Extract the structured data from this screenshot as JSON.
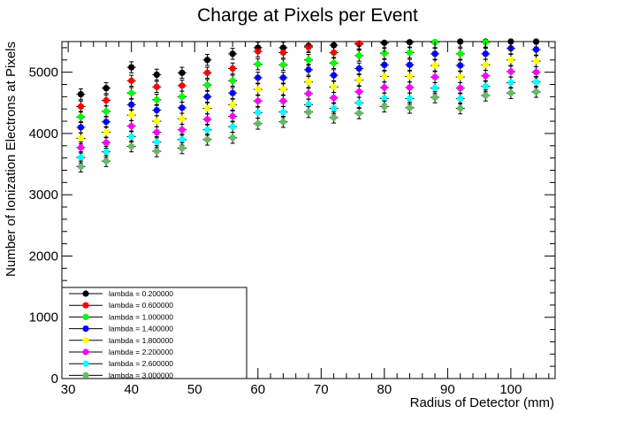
{
  "chart_data": {
    "type": "scatter",
    "title": "Charge at Pixels per Event",
    "xlabel": "Radius of Detector (mm)",
    "ylabel": "Number of Ionization Electrons at Pixels",
    "xlim": [
      29,
      107
    ],
    "ylim": [
      0,
      5500
    ],
    "x_ticks": [
      30,
      40,
      50,
      60,
      70,
      80,
      90,
      100
    ],
    "y_ticks": [
      0,
      1000,
      2000,
      3000,
      4000,
      5000
    ],
    "grid": false,
    "legend_position": "bottom-left",
    "x": [
      32,
      36,
      40,
      44,
      48,
      52,
      56,
      60,
      64,
      68,
      72,
      76,
      80,
      84,
      88,
      92,
      96,
      100,
      104
    ],
    "series": [
      {
        "name": "lambda = 0.200000",
        "color": "#000000",
        "values": [
          4640,
          4740,
          5080,
          4960,
          4990,
          5200,
          5300,
          5400,
          5400,
          5430,
          5440,
          5460,
          5480,
          5490,
          5490,
          5500,
          5500,
          5500,
          5500
        ]
      },
      {
        "name": "lambda = 0.600000",
        "color": "#ff0000",
        "values": [
          4440,
          4540,
          4860,
          4760,
          4780,
          4990,
          5060,
          5340,
          5320,
          5410,
          5320,
          5470,
          5510,
          5510,
          5520,
          5510,
          5520,
          5540,
          5540
        ]
      },
      {
        "name": "lambda = 1.000000",
        "color": "#00ff00",
        "values": [
          4270,
          4360,
          4660,
          4550,
          4600,
          4790,
          4860,
          5130,
          5120,
          5200,
          5150,
          5270,
          5310,
          5320,
          5490,
          5300,
          5490,
          5530,
          5530
        ]
      },
      {
        "name": "lambda = 1.400000",
        "color": "#0000ff",
        "values": [
          4100,
          4190,
          4470,
          4380,
          4420,
          4600,
          4660,
          4910,
          4910,
          5040,
          4950,
          5060,
          5120,
          5120,
          5300,
          5110,
          5300,
          5390,
          5370
        ]
      },
      {
        "name": "lambda = 1.800000",
        "color": "#ffff00",
        "values": [
          3920,
          4020,
          4300,
          4200,
          4240,
          4410,
          4470,
          4720,
          4720,
          4840,
          4760,
          4870,
          4930,
          4930,
          5110,
          4920,
          5120,
          5200,
          5180
        ]
      },
      {
        "name": "lambda = 2.200000",
        "color": "#ff00ff",
        "values": [
          3770,
          3850,
          4120,
          4020,
          4060,
          4230,
          4280,
          4530,
          4530,
          4650,
          4580,
          4680,
          4750,
          4750,
          4920,
          4740,
          4940,
          5010,
          5000
        ]
      },
      {
        "name": "lambda = 2.600000",
        "color": "#00ffff",
        "values": [
          3610,
          3700,
          3950,
          3860,
          3900,
          4060,
          4110,
          4340,
          4350,
          4470,
          4410,
          4500,
          4570,
          4570,
          4740,
          4570,
          4770,
          4830,
          4840
        ]
      },
      {
        "name": "lambda = 3.000000",
        "color": "#66bb66",
        "values": [
          3460,
          3550,
          3790,
          3710,
          3760,
          3900,
          3930,
          4160,
          4190,
          4350,
          4260,
          4330,
          4440,
          4420,
          4590,
          4410,
          4620,
          4660,
          4680
        ]
      }
    ]
  }
}
